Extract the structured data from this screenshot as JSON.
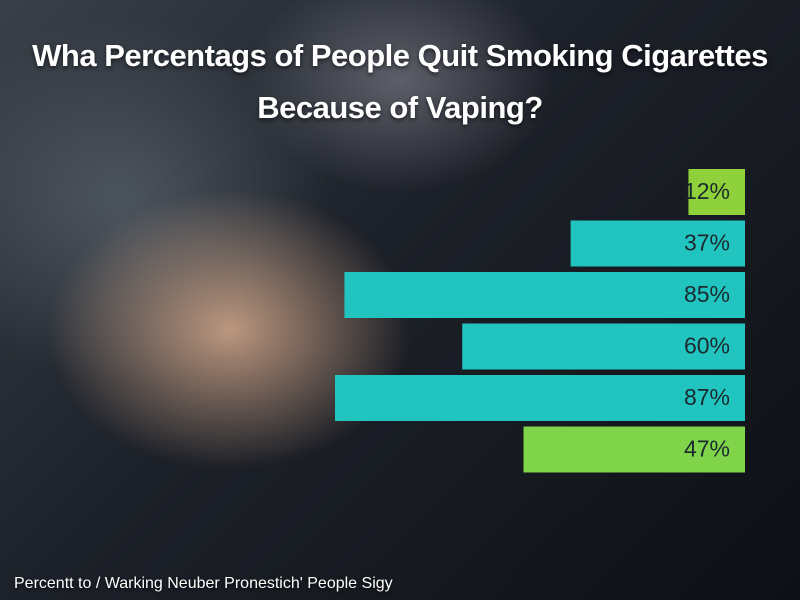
{
  "chart_data": {
    "type": "bar",
    "orientation": "horizontal",
    "title": "Wha Percentags of People Quit Smoking Cigarettes Because of Vaping?",
    "values": [
      12,
      37,
      85,
      60,
      87,
      47
    ],
    "value_labels": [
      "12%",
      "37%",
      "85%",
      "60%",
      "87%",
      "47%"
    ],
    "colors": [
      "#8fd13a",
      "#22c4c0",
      "#22c4c0",
      "#22c4c0",
      "#22c4c0",
      "#7fd44a"
    ],
    "footer": "Percentt to / Warking Neuber Pronestich' People Sigy"
  }
}
